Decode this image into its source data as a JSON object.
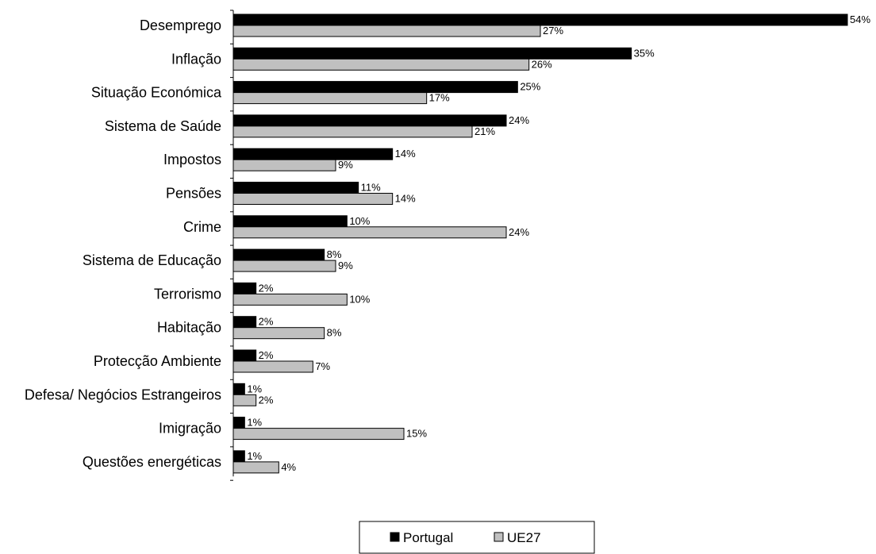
{
  "chart_data": {
    "type": "bar",
    "orientation": "horizontal",
    "categories": [
      "Desemprego",
      "Inflação",
      "Situação Económica",
      "Sistema de Saúde",
      "Impostos",
      "Pensões",
      "Crime",
      "Sistema de Educação",
      "Terrorismo",
      "Habitação",
      "Protecção Ambiente",
      "Defesa/ Negócios Estrangeiros",
      "Imigração",
      "Questões energéticas"
    ],
    "series": [
      {
        "name": "Portugal",
        "color": "#000000",
        "values": [
          54,
          35,
          25,
          24,
          14,
          11,
          10,
          8,
          2,
          2,
          2,
          1,
          1,
          1
        ]
      },
      {
        "name": "UE27",
        "color": "#c0c0c0",
        "values": [
          27,
          26,
          17,
          21,
          9,
          14,
          24,
          9,
          10,
          8,
          7,
          2,
          15,
          4
        ]
      }
    ],
    "value_suffix": "%",
    "xlim": [
      0,
      54
    ],
    "grid": false,
    "legend_position": "bottom"
  }
}
